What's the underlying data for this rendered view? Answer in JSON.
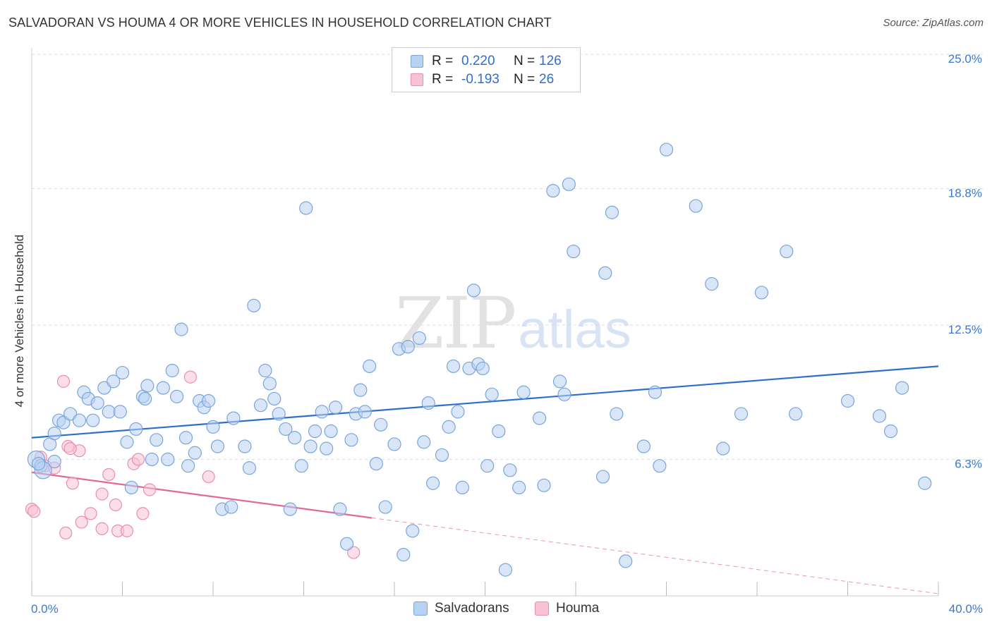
{
  "header": {
    "title": "SALVADORAN VS HOUMA 4 OR MORE VEHICLES IN HOUSEHOLD CORRELATION CHART",
    "source": "Source: ZipAtlas.com"
  },
  "watermark": {
    "zip": "ZIP",
    "atlas": "atlas"
  },
  "legend": {
    "rows": [
      {
        "r_label": "R =",
        "r_value": "0.220",
        "n_label": "N =",
        "n_value": "126"
      },
      {
        "r_label": "R =",
        "r_value": "-0.193",
        "n_label": "N =",
        "n_value": "26"
      }
    ]
  },
  "bottom_legend": {
    "series_a": "Salvadorans",
    "series_b": "Houma"
  },
  "colors": {
    "salvadorans_fill": "#b8d2f2",
    "salvadorans_stroke": "#7aa5dc",
    "salvadorans_line": "#2e6fce",
    "houma_fill": "#f7c3d3",
    "houma_stroke": "#e890ad",
    "houma_line": "#e2679a",
    "tick_label": "#3c78d0",
    "grid": "#dddddd"
  },
  "chart_data": {
    "type": "scatter",
    "title": "SALVADORAN VS HOUMA 4 OR MORE VEHICLES IN HOUSEHOLD CORRELATION CHART",
    "ylabel": "4 or more Vehicles in Household",
    "xlim": [
      0,
      40
    ],
    "ylim": [
      0,
      25
    ],
    "x_tick_labels": [
      "0.0%",
      "40.0%"
    ],
    "y_ticks": [
      6.3,
      12.5,
      18.8,
      25.0
    ],
    "y_tick_labels": [
      "6.3%",
      "12.5%",
      "18.8%",
      "25.0%"
    ],
    "grid": true,
    "legend_position": "top-center",
    "series": [
      {
        "name": "Salvadorans",
        "r": 0.22,
        "n": 126,
        "trend": {
          "x": [
            0,
            40
          ],
          "y": [
            7.3,
            10.6
          ]
        },
        "points": [
          [
            0.2,
            6.3
          ],
          [
            0.4,
            6.0
          ],
          [
            0.5,
            5.8
          ],
          [
            0.8,
            7.0
          ],
          [
            1.0,
            7.5
          ],
          [
            1.2,
            8.1
          ],
          [
            1.4,
            8.0
          ],
          [
            1.7,
            8.4
          ],
          [
            2.1,
            8.1
          ],
          [
            2.3,
            9.4
          ],
          [
            2.5,
            9.1
          ],
          [
            2.7,
            8.1
          ],
          [
            2.9,
            8.9
          ],
          [
            3.2,
            9.6
          ],
          [
            3.4,
            8.5
          ],
          [
            3.6,
            9.9
          ],
          [
            3.9,
            8.5
          ],
          [
            4.0,
            10.3
          ],
          [
            4.2,
            7.1
          ],
          [
            4.4,
            5.0
          ],
          [
            4.6,
            7.7
          ],
          [
            4.9,
            9.2
          ],
          [
            5.1,
            9.7
          ],
          [
            5.3,
            6.3
          ],
          [
            5.5,
            7.2
          ],
          [
            5.8,
            9.6
          ],
          [
            6.0,
            6.3
          ],
          [
            6.2,
            10.4
          ],
          [
            6.4,
            9.2
          ],
          [
            6.6,
            12.3
          ],
          [
            6.8,
            7.3
          ],
          [
            6.9,
            6.0
          ],
          [
            7.2,
            6.6
          ],
          [
            7.4,
            9.0
          ],
          [
            7.6,
            8.7
          ],
          [
            7.8,
            9.0
          ],
          [
            8.0,
            7.8
          ],
          [
            8.2,
            6.9
          ],
          [
            8.4,
            4.0
          ],
          [
            8.8,
            4.1
          ],
          [
            8.9,
            8.2
          ],
          [
            9.4,
            6.9
          ],
          [
            9.6,
            5.9
          ],
          [
            9.8,
            13.4
          ],
          [
            10.1,
            8.8
          ],
          [
            10.3,
            10.4
          ],
          [
            10.5,
            9.8
          ],
          [
            10.7,
            9.1
          ],
          [
            10.9,
            8.4
          ],
          [
            11.2,
            7.7
          ],
          [
            11.4,
            4.0
          ],
          [
            11.6,
            7.3
          ],
          [
            11.9,
            6.0
          ],
          [
            12.1,
            17.9
          ],
          [
            12.3,
            6.9
          ],
          [
            12.5,
            7.6
          ],
          [
            12.8,
            8.5
          ],
          [
            13.0,
            6.8
          ],
          [
            13.2,
            7.6
          ],
          [
            13.4,
            8.7
          ],
          [
            13.6,
            4.0
          ],
          [
            13.9,
            2.4
          ],
          [
            14.1,
            7.2
          ],
          [
            14.3,
            8.4
          ],
          [
            14.5,
            9.5
          ],
          [
            14.7,
            8.5
          ],
          [
            14.9,
            10.6
          ],
          [
            15.2,
            6.1
          ],
          [
            15.4,
            7.9
          ],
          [
            15.6,
            4.1
          ],
          [
            16.0,
            7.0
          ],
          [
            16.2,
            11.4
          ],
          [
            16.4,
            1.9
          ],
          [
            16.6,
            11.5
          ],
          [
            16.8,
            3.0
          ],
          [
            17.1,
            11.9
          ],
          [
            17.3,
            7.1
          ],
          [
            17.5,
            8.9
          ],
          [
            17.7,
            5.2
          ],
          [
            18.1,
            6.5
          ],
          [
            18.4,
            7.8
          ],
          [
            18.6,
            10.6
          ],
          [
            18.8,
            8.5
          ],
          [
            19.0,
            5.0
          ],
          [
            19.3,
            10.5
          ],
          [
            19.5,
            14.1
          ],
          [
            19.7,
            10.7
          ],
          [
            19.9,
            10.5
          ],
          [
            20.1,
            6.0
          ],
          [
            20.3,
            9.3
          ],
          [
            20.6,
            7.6
          ],
          [
            20.9,
            1.2
          ],
          [
            21.1,
            5.8
          ],
          [
            21.5,
            5.0
          ],
          [
            21.7,
            9.4
          ],
          [
            22.4,
            8.2
          ],
          [
            22.6,
            5.1
          ],
          [
            23.0,
            18.7
          ],
          [
            23.3,
            9.9
          ],
          [
            23.5,
            9.3
          ],
          [
            23.7,
            19.0
          ],
          [
            23.9,
            15.9
          ],
          [
            25.2,
            5.5
          ],
          [
            25.3,
            14.9
          ],
          [
            25.6,
            17.7
          ],
          [
            25.8,
            8.4
          ],
          [
            26.2,
            1.6
          ],
          [
            27.0,
            6.9
          ],
          [
            27.5,
            9.4
          ],
          [
            27.7,
            6.0
          ],
          [
            28.0,
            20.6
          ],
          [
            29.3,
            18.0
          ],
          [
            30.0,
            14.4
          ],
          [
            30.5,
            6.8
          ],
          [
            31.3,
            8.4
          ],
          [
            32.2,
            14.0
          ],
          [
            33.3,
            15.9
          ],
          [
            33.7,
            8.4
          ],
          [
            36.0,
            9.0
          ],
          [
            37.4,
            8.3
          ],
          [
            37.9,
            7.6
          ],
          [
            38.4,
            9.6
          ],
          [
            39.4,
            5.2
          ],
          [
            0.3,
            6.1
          ],
          [
            1.0,
            6.2
          ],
          [
            5.0,
            9.1
          ]
        ]
      },
      {
        "name": "Houma",
        "r": -0.193,
        "n": 26,
        "trend": {
          "x": [
            0,
            15
          ],
          "y": [
            5.7,
            3.6
          ]
        },
        "trend_extension": {
          "x": [
            15,
            40
          ],
          "y": [
            3.6,
            0.1
          ]
        },
        "points": [
          [
            0.0,
            4.0
          ],
          [
            0.4,
            6.4
          ],
          [
            0.6,
            6.0
          ],
          [
            1.0,
            5.9
          ],
          [
            1.4,
            9.9
          ],
          [
            1.5,
            2.9
          ],
          [
            1.6,
            6.9
          ],
          [
            1.8,
            5.2
          ],
          [
            2.1,
            6.7
          ],
          [
            2.2,
            3.4
          ],
          [
            2.6,
            3.8
          ],
          [
            3.1,
            3.1
          ],
          [
            3.1,
            4.7
          ],
          [
            3.4,
            5.6
          ],
          [
            3.7,
            4.2
          ],
          [
            3.8,
            3.0
          ],
          [
            4.2,
            3.0
          ],
          [
            4.5,
            6.1
          ],
          [
            4.7,
            6.3
          ],
          [
            4.9,
            3.8
          ],
          [
            5.2,
            4.9
          ],
          [
            7.0,
            10.1
          ],
          [
            7.8,
            5.5
          ],
          [
            14.2,
            2.0
          ],
          [
            0.1,
            3.9
          ],
          [
            1.7,
            6.8
          ]
        ]
      }
    ]
  }
}
